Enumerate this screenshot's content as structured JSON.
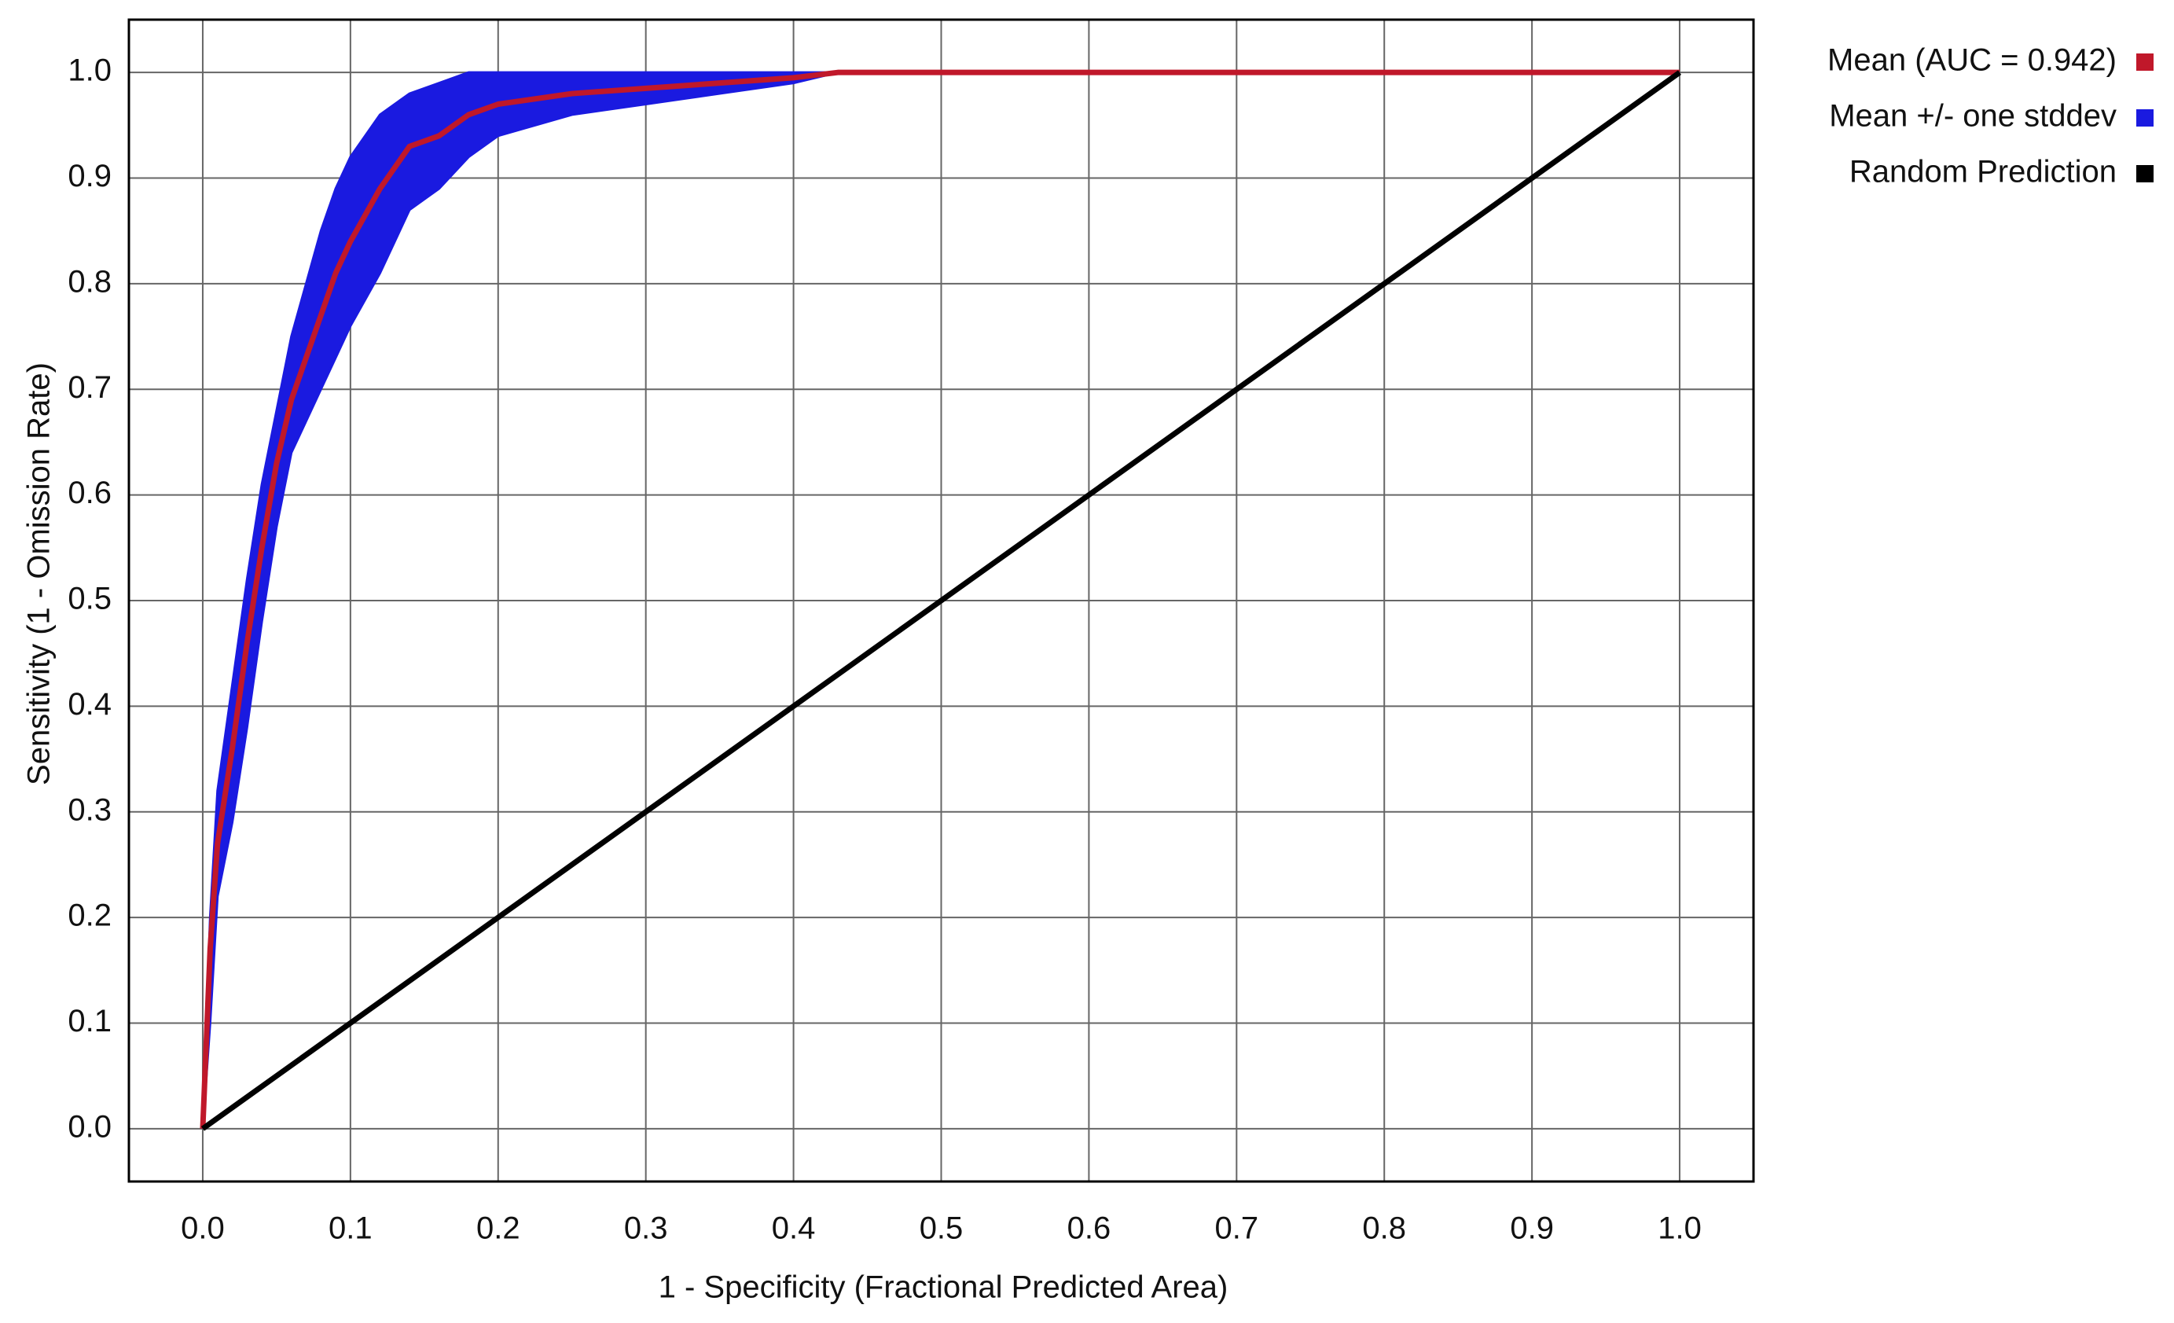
{
  "chart_data": {
    "type": "line",
    "x_label": "1 - Specificity (Fractional Predicted Area)",
    "y_label": "Sensitivity (1 - Omission Rate)",
    "x": [
      0,
      0.005,
      0.01,
      0.02,
      0.03,
      0.04,
      0.05,
      0.06,
      0.07,
      0.08,
      0.09,
      0.1,
      0.12,
      0.14,
      0.16,
      0.18,
      0.2,
      0.25,
      0.3,
      0.35,
      0.4,
      0.43,
      0.5,
      0.6,
      0.7,
      0.8,
      0.9,
      1.0
    ],
    "series": [
      {
        "name": "Mean +/- one stddev",
        "color": "#1a1ae0",
        "kind": "band",
        "upper": [
          0,
          0.2,
          0.32,
          0.42,
          0.52,
          0.61,
          0.68,
          0.75,
          0.8,
          0.85,
          0.89,
          0.92,
          0.96,
          0.98,
          0.99,
          1,
          1,
          1,
          1,
          1,
          1,
          1,
          1,
          1,
          1,
          1,
          1,
          1
        ],
        "lower": [
          0,
          0.1,
          0.22,
          0.29,
          0.38,
          0.48,
          0.57,
          0.64,
          0.67,
          0.7,
          0.73,
          0.76,
          0.81,
          0.87,
          0.89,
          0.92,
          0.94,
          0.96,
          0.97,
          0.98,
          0.99,
          1,
          1,
          1,
          1,
          1,
          1,
          1
        ]
      },
      {
        "name": "Mean (AUC = 0.942)",
        "color": "#c0182a",
        "kind": "line",
        "values": [
          0,
          0.17,
          0.27,
          0.36,
          0.46,
          0.55,
          0.63,
          0.69,
          0.73,
          0.77,
          0.81,
          0.84,
          0.89,
          0.93,
          0.94,
          0.96,
          0.97,
          0.98,
          0.985,
          0.99,
          0.995,
          1,
          1,
          1,
          1,
          1,
          1,
          1
        ]
      },
      {
        "name": "Random Prediction",
        "color": "#000000",
        "kind": "line",
        "x": [
          0,
          1
        ],
        "values": [
          0,
          1
        ]
      }
    ],
    "legend_order": [
      1,
      0,
      2
    ],
    "legend": "right",
    "xlim": [
      -0.05,
      1.05
    ],
    "ylim": [
      -0.05,
      1.05
    ],
    "xticks": [
      {
        "value": 0,
        "label": "0.0"
      },
      0.1,
      0.2,
      0.3,
      0.4,
      0.5,
      0.6,
      0.7,
      0.8,
      0.9,
      {
        "value": 1,
        "label": "1.0"
      }
    ],
    "yticks": [
      {
        "value": 0,
        "label": "0.0"
      },
      0.1,
      0.2,
      0.3,
      0.4,
      0.5,
      0.6,
      0.7,
      0.8,
      0.9,
      {
        "value": 1,
        "label": "1.0"
      }
    ],
    "grid": true
  }
}
